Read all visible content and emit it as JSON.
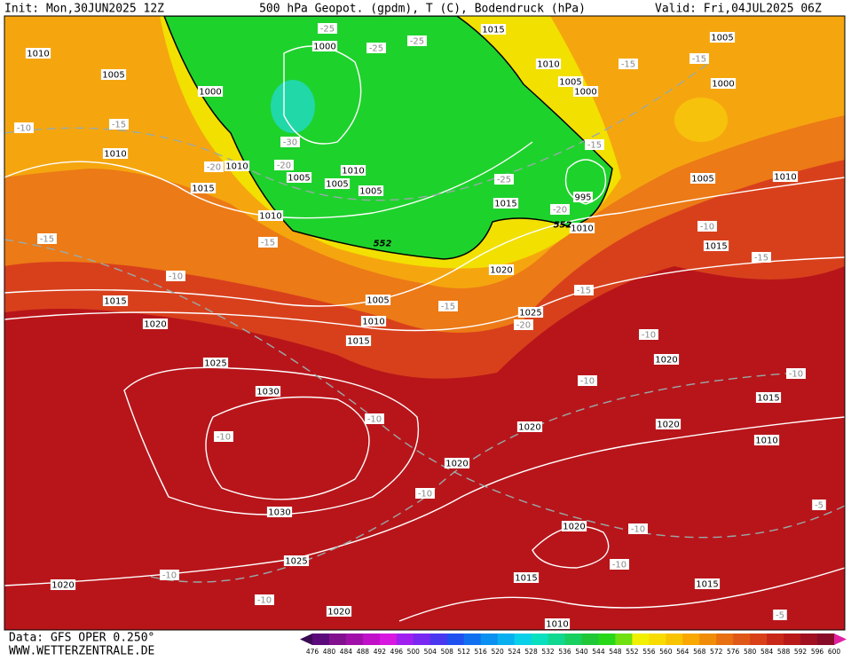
{
  "header": {
    "init": "Init: Mon,30JUN2025 12Z",
    "title": "500 hPa Geopot. (gpdm), T (C), Bodendruck (hPa)",
    "valid": "Valid: Fri,04JUL2025 06Z"
  },
  "footer": {
    "source": "Data: GFS OPER 0.250°",
    "site": "WWW.WETTERZENTRALE.DE"
  },
  "isobar_labels": [
    "1010",
    "1005",
    "1000",
    "1000",
    "1015",
    "1005",
    "1010",
    "1005",
    "1000",
    "1000",
    "1010",
    "1010",
    "1005",
    "1010",
    "1005",
    "1005",
    "1015",
    "995",
    "1010",
    "1005",
    "1010",
    "1015",
    "1010",
    "1015",
    "1020",
    "1005",
    "1025",
    "1010",
    "1015",
    "1020",
    "1015",
    "1025",
    "1020",
    "1030",
    "1015",
    "1020",
    "1020",
    "1010",
    "1020",
    "1030",
    "1020",
    "1025",
    "1015",
    "1015",
    "1020",
    "1020",
    "1010"
  ],
  "temperature_labels": [
    "-25",
    "-25",
    "-25",
    "-15",
    "-15",
    "-10",
    "-15",
    "-30",
    "-20",
    "-20",
    "-15",
    "-25",
    "-20",
    "-10",
    "-15",
    "-15",
    "-15",
    "-10",
    "-15",
    "-15",
    "-20",
    "-10",
    "-10",
    "-10",
    "-10",
    "-10",
    "-10",
    "-10",
    "-10",
    "-10",
    "-10",
    "-5",
    "-5"
  ],
  "geopotential_labels": [
    "552",
    "552"
  ],
  "colorbar": {
    "labels": [
      "476",
      "480",
      "484",
      "488",
      "492",
      "496",
      "500",
      "504",
      "508",
      "512",
      "516",
      "520",
      "524",
      "528",
      "532",
      "536",
      "540",
      "544",
      "548",
      "552",
      "556",
      "560",
      "564",
      "568",
      "572",
      "576",
      "580",
      "584",
      "588",
      "592",
      "596",
      "600"
    ]
  }
}
